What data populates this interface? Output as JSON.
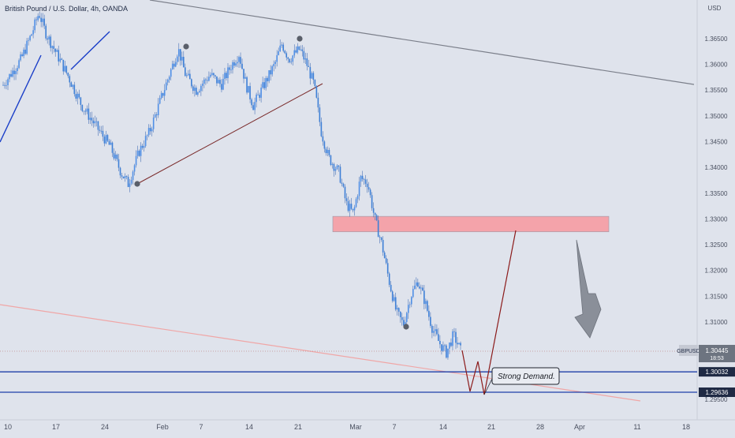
{
  "header": {
    "title": "British Pound / U.S. Dollar, 4h, OANDA"
  },
  "colors": {
    "background": "#dfe3ec",
    "candle_up": "#3d7fd6",
    "candle_down": "#3d7fd6",
    "wick": "#4a73b8",
    "zone_fill": "#f4a3aa",
    "level_line": "#1f3fa8",
    "trend_line_dark": "#7b7f8a",
    "trend_line_pink": "#f0a6a6",
    "projection_line": "#8b1a1a",
    "arrow": "#8a8f99",
    "price_tag": "#1f2a44",
    "current_price_tag": "#6d7480"
  },
  "chart_data": {
    "type": "candlestick",
    "title": "British Pound / U.S. Dollar, 4h, OANDA",
    "ylabel": "USD",
    "ylim": [
      1.291,
      1.3725
    ],
    "x_tick_labels": [
      "10",
      "17",
      "24",
      "Feb",
      "7",
      "14",
      "21",
      "Mar",
      "7",
      "14",
      "21",
      "28",
      "Apr",
      "11",
      "18"
    ],
    "y_tick_labels": [
      "1.36500",
      "1.36000",
      "1.35500",
      "1.35000",
      "1.34500",
      "1.34000",
      "1.33500",
      "1.33000",
      "1.32500",
      "1.32000",
      "1.31500",
      "1.31000",
      "1.30500",
      "1.29500"
    ],
    "path_points": [
      [
        0,
        1.356
      ],
      [
        5,
        1.361
      ],
      [
        8,
        1.366
      ],
      [
        10,
        1.37
      ],
      [
        12,
        1.366
      ],
      [
        15,
        1.362
      ],
      [
        18,
        1.358
      ],
      [
        22,
        1.352
      ],
      [
        26,
        1.348
      ],
      [
        30,
        1.344
      ],
      [
        33,
        1.339
      ],
      [
        35,
        1.3368
      ],
      [
        38,
        1.343
      ],
      [
        41,
        1.347
      ],
      [
        44,
        1.353
      ],
      [
        47,
        1.359
      ],
      [
        49,
        1.363
      ],
      [
        51,
        1.358
      ],
      [
        54,
        1.355
      ],
      [
        58,
        1.358
      ],
      [
        61,
        1.356
      ],
      [
        64,
        1.36
      ],
      [
        66,
        1.362
      ],
      [
        68,
        1.356
      ],
      [
        70,
        1.352
      ],
      [
        73,
        1.356
      ],
      [
        76,
        1.36
      ],
      [
        78,
        1.364
      ],
      [
        80,
        1.361
      ],
      [
        83,
        1.363
      ],
      [
        85,
        1.36
      ],
      [
        87,
        1.356
      ],
      [
        89,
        1.347
      ],
      [
        91,
        1.342
      ],
      [
        94,
        1.339
      ],
      [
        96,
        1.333
      ],
      [
        98,
        1.331
      ],
      [
        100,
        1.338
      ],
      [
        102,
        1.337
      ],
      [
        104,
        1.33
      ],
      [
        106,
        1.325
      ],
      [
        108,
        1.318
      ],
      [
        110,
        1.312
      ],
      [
        112,
        1.3095
      ],
      [
        114,
        1.315
      ],
      [
        116,
        1.318
      ],
      [
        118,
        1.314
      ],
      [
        120,
        1.309
      ],
      [
        122,
        1.306
      ],
      [
        124,
        1.304
      ],
      [
        126,
        1.3075
      ],
      [
        128,
        1.3045
      ]
    ],
    "annotations": {
      "demand_label": "Strong Demand.",
      "current_symbol": "GBPUSD",
      "current_price": "1.30445",
      "current_countdown": "18:53",
      "level_1": "1.30032",
      "level_2": "1.29636",
      "supply_zone": [
        1.3275,
        1.3305
      ]
    }
  }
}
